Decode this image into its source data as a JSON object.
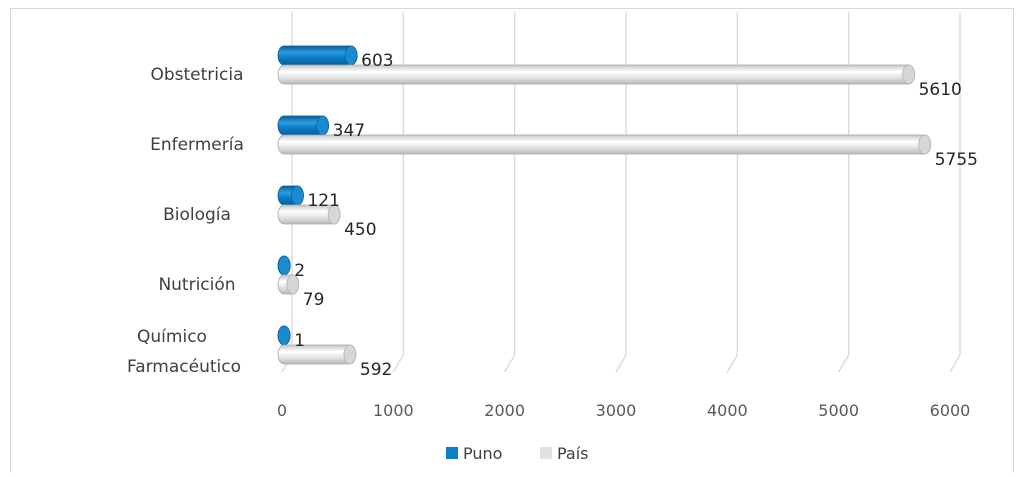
{
  "colors": {
    "puno": "#0b7fc7",
    "pais": "#e2e2e2",
    "grid": "#d9d9d9"
  },
  "chart_data": {
    "type": "bar",
    "orientation": "horizontal",
    "style": "3d-cylinder",
    "categories": [
      "Obstetricia",
      "Enfermería",
      "Biología",
      "Nutrición",
      "Químico Farmacéutico"
    ],
    "category_lines": [
      [
        "Obstetricia"
      ],
      [
        "Enfermería"
      ],
      [
        "Biología"
      ],
      [
        "Nutrición"
      ],
      [
        "Químico",
        "Farmacéutico"
      ]
    ],
    "series": [
      {
        "name": "Puno",
        "values": [
          603,
          347,
          121,
          2,
          1
        ],
        "color": "#0b7fc7"
      },
      {
        "name": "País",
        "values": [
          5610,
          5755,
          450,
          79,
          592
        ],
        "color": "#e2e2e2"
      }
    ],
    "xlim": [
      0,
      6000
    ],
    "xticks": [
      0,
      1000,
      2000,
      3000,
      4000,
      5000,
      6000
    ],
    "title": "",
    "xlabel": "",
    "ylabel": "",
    "grid": true,
    "legend": {
      "position": "bottom",
      "entries": [
        "Puno",
        "País"
      ]
    }
  }
}
